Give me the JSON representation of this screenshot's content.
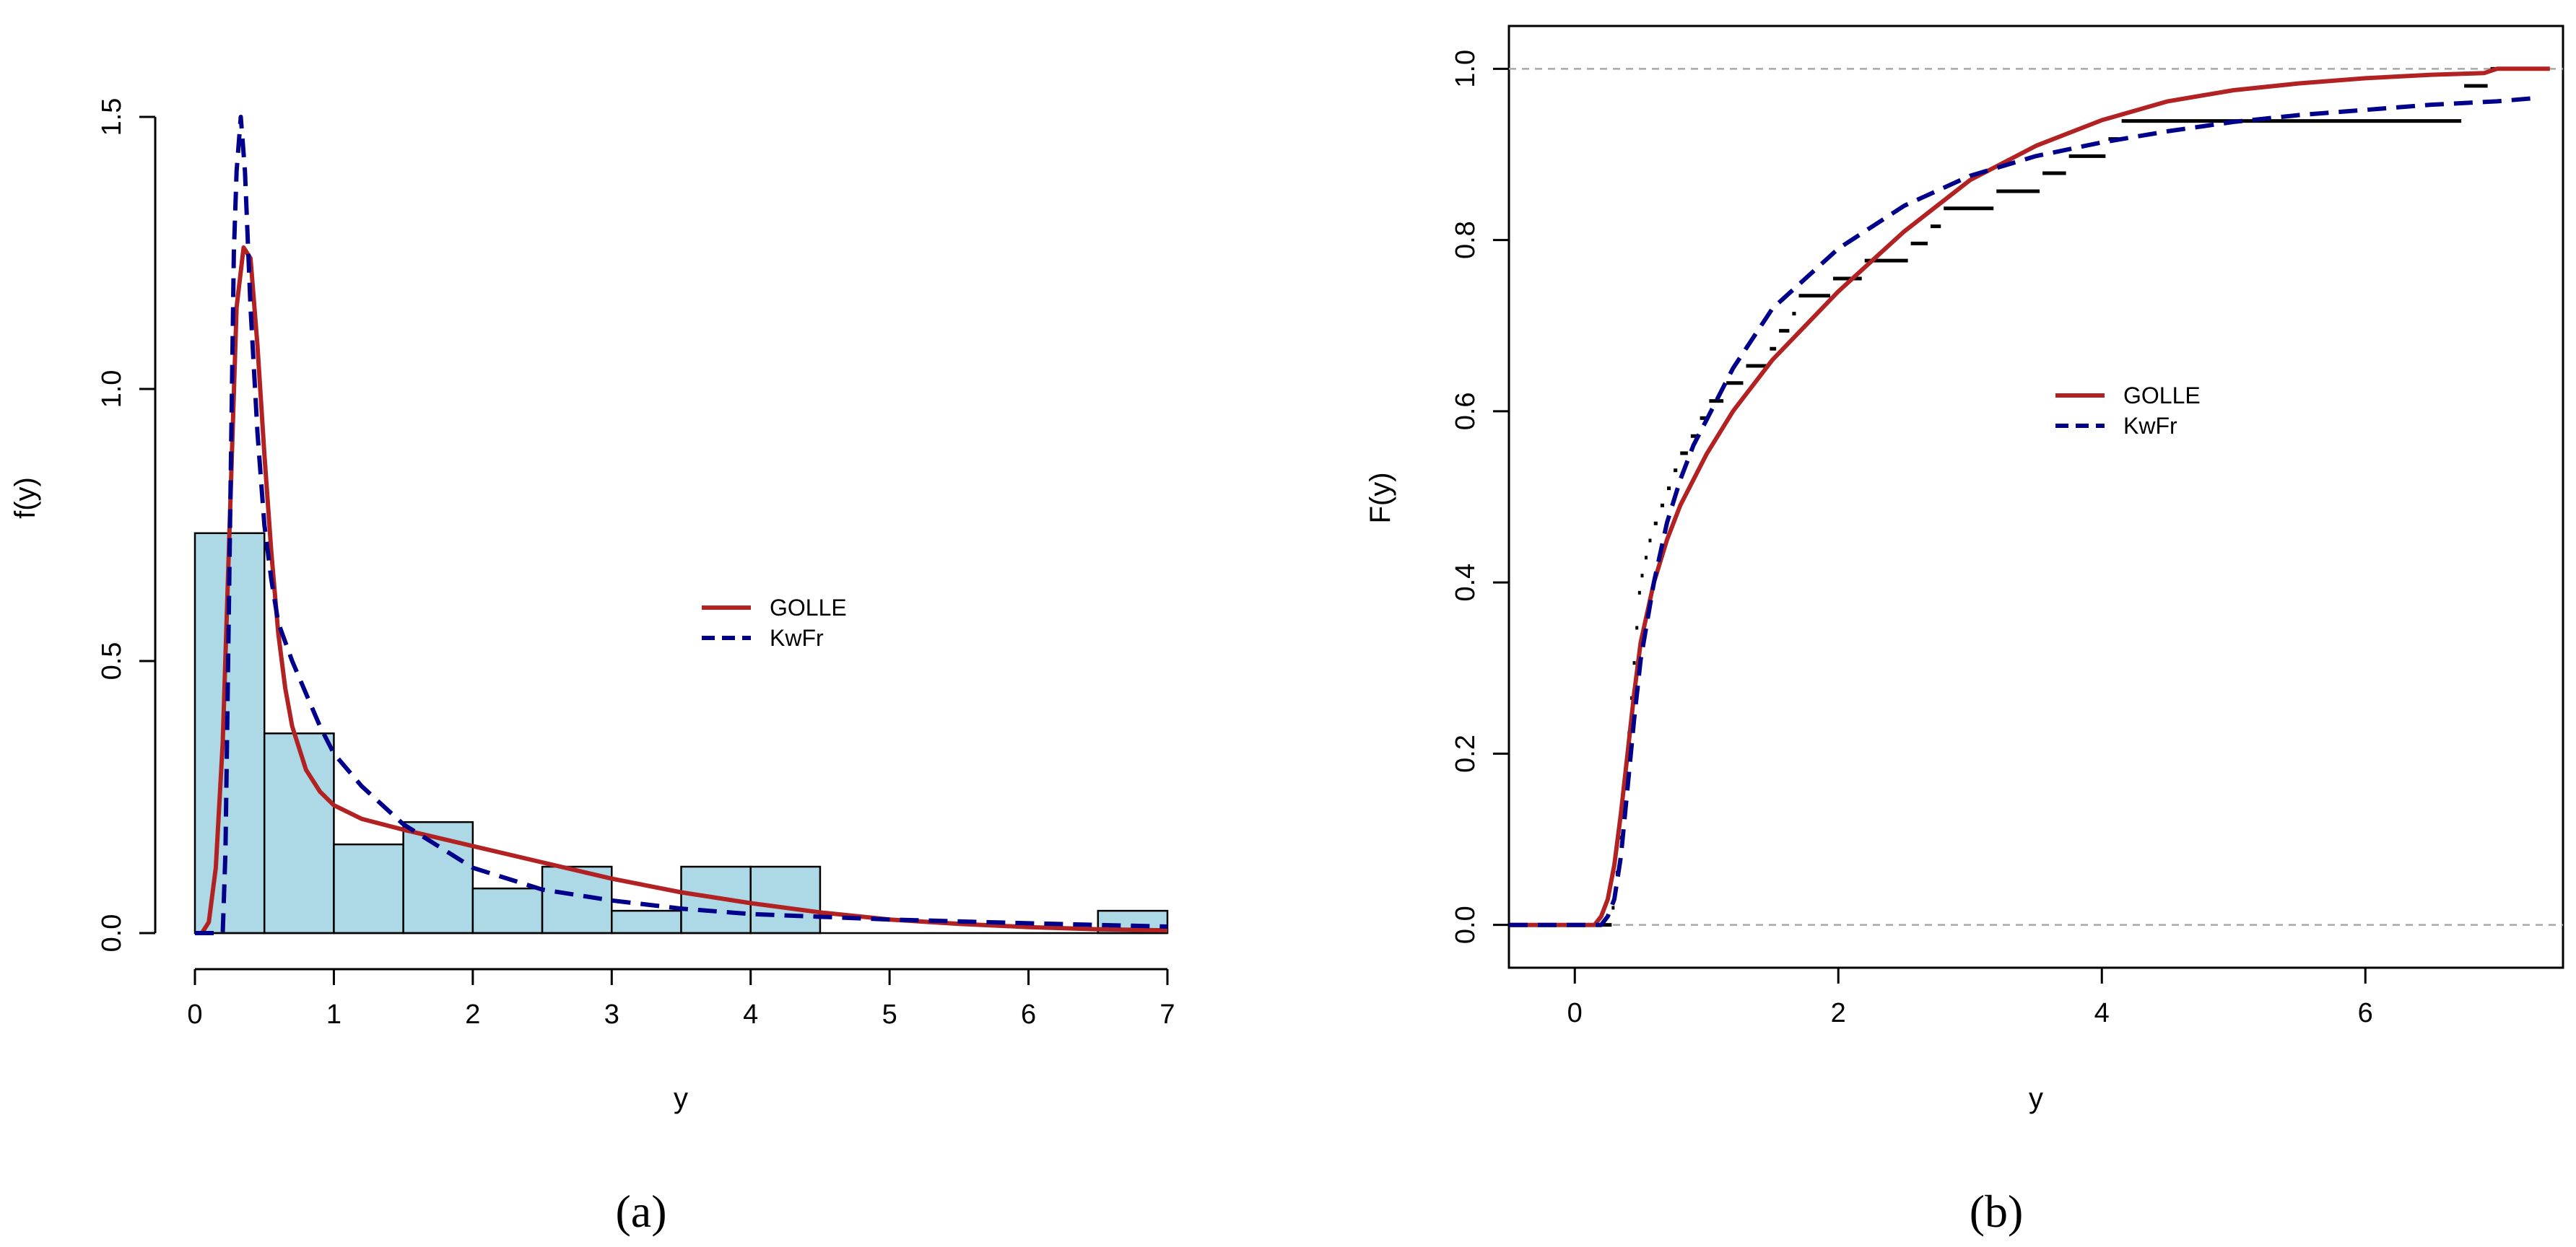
{
  "chart_data": [
    {
      "type": "bar",
      "panel_label": "(a)",
      "xlabel": "y",
      "ylabel": "f(y)",
      "xlim": [
        0,
        7
      ],
      "ylim": [
        0,
        1.5
      ],
      "x_ticks": [
        "0",
        "1",
        "2",
        "3",
        "4",
        "5",
        "6",
        "7"
      ],
      "y_ticks": [
        "0.0",
        "0.5",
        "1.0",
        "1.5"
      ],
      "grid": false,
      "legend_position": "center-right",
      "histogram": {
        "bin_edges": [
          0,
          0.5,
          1,
          1.5,
          2,
          2.5,
          3,
          3.5,
          4,
          4.5,
          5,
          5.5,
          6,
          6.5,
          7
        ],
        "density": [
          0.735,
          0.367,
          0.163,
          0.204,
          0.082,
          0.122,
          0.041,
          0.122,
          0.122,
          0,
          0,
          0,
          0,
          0.041
        ],
        "fill_color": "#ADD8E6",
        "edge_color": "#000000"
      },
      "series": [
        {
          "name": "GOLLE",
          "color": "#B22222",
          "line_style": "solid",
          "x": [
            0,
            0.05,
            0.1,
            0.15,
            0.2,
            0.25,
            0.3,
            0.35,
            0.4,
            0.45,
            0.5,
            0.55,
            0.6,
            0.65,
            0.7,
            0.8,
            0.9,
            1.0,
            1.2,
            1.5,
            2.0,
            2.5,
            3.0,
            3.5,
            4.0,
            4.5,
            5.0,
            5.5,
            6.0,
            6.5,
            7.0
          ],
          "y": [
            0,
            0,
            0.02,
            0.12,
            0.35,
            0.75,
            1.15,
            1.26,
            1.24,
            1.08,
            0.88,
            0.7,
            0.55,
            0.45,
            0.38,
            0.3,
            0.26,
            0.235,
            0.21,
            0.19,
            0.16,
            0.13,
            0.1,
            0.075,
            0.055,
            0.038,
            0.025,
            0.017,
            0.011,
            0.007,
            0.005
          ]
        },
        {
          "name": "KwFr",
          "color": "#00008B",
          "line_style": "dashed",
          "x": [
            0,
            0.15,
            0.2,
            0.22,
            0.25,
            0.28,
            0.3,
            0.33,
            0.36,
            0.4,
            0.45,
            0.5,
            0.55,
            0.6,
            0.7,
            0.8,
            0.9,
            1.0,
            1.2,
            1.5,
            2.0,
            2.5,
            3.0,
            3.5,
            4.0,
            5.0,
            6.0,
            7.0
          ],
          "y": [
            0,
            0,
            0,
            0.15,
            0.7,
            1.25,
            1.4,
            1.5,
            1.4,
            1.15,
            0.92,
            0.75,
            0.65,
            0.57,
            0.5,
            0.44,
            0.38,
            0.33,
            0.27,
            0.2,
            0.12,
            0.08,
            0.06,
            0.045,
            0.035,
            0.025,
            0.018,
            0.012
          ]
        }
      ]
    },
    {
      "type": "line",
      "panel_label": "(b)",
      "xlabel": "y",
      "ylabel": "F(y)",
      "xlim": [
        -0.5,
        7.5
      ],
      "ylim": [
        0,
        1
      ],
      "x_ticks": [
        "0",
        "2",
        "4",
        "6"
      ],
      "y_ticks": [
        "0.0",
        "0.2",
        "0.4",
        "0.6",
        "0.8",
        "1.0"
      ],
      "reference_lines": [
        0,
        1
      ],
      "grid": false,
      "legend_position": "center",
      "ecdf": {
        "color": "#000000",
        "jumps": [
          0.28,
          0.31,
          0.33,
          0.36,
          0.38,
          0.4,
          0.42,
          0.44,
          0.46,
          0.48,
          0.5,
          0.53,
          0.56,
          0.6,
          0.65,
          0.7,
          0.75,
          0.8,
          0.88,
          0.95,
          1.02,
          1.15,
          1.3,
          1.48,
          1.55,
          1.65,
          1.7,
          1.96,
          2.2,
          2.55,
          2.7,
          2.8,
          3.2,
          3.55,
          3.75,
          4.05,
          4.15,
          6.75,
          6.95
        ],
        "levels": [
          0.02,
          0.061,
          0.102,
          0.143,
          0.184,
          0.224,
          0.265,
          0.306,
          0.347,
          0.388,
          0.408,
          0.429,
          0.449,
          0.469,
          0.49,
          0.51,
          0.531,
          0.551,
          0.571,
          0.592,
          0.612,
          0.633,
          0.653,
          0.673,
          0.694,
          0.714,
          0.735,
          0.755,
          0.776,
          0.796,
          0.816,
          0.837,
          0.857,
          0.878,
          0.898,
          0.918,
          0.939,
          0.98,
          1.0
        ],
        "max_x": 7.4
      },
      "series": [
        {
          "name": "GOLLE",
          "color": "#B22222",
          "line_style": "solid",
          "x": [
            -0.5,
            0.15,
            0.2,
            0.25,
            0.3,
            0.35,
            0.4,
            0.45,
            0.5,
            0.6,
            0.7,
            0.8,
            1.0,
            1.2,
            1.5,
            2.0,
            2.5,
            3.0,
            3.5,
            4.0,
            4.5,
            5.0,
            5.5,
            6.0,
            6.5,
            6.9,
            7.0,
            7.4
          ],
          "y": [
            0,
            0,
            0.01,
            0.03,
            0.07,
            0.13,
            0.2,
            0.27,
            0.33,
            0.4,
            0.45,
            0.49,
            0.55,
            0.6,
            0.66,
            0.74,
            0.81,
            0.87,
            0.91,
            0.94,
            0.962,
            0.975,
            0.983,
            0.989,
            0.993,
            0.995,
            1.0,
            1.0
          ]
        },
        {
          "name": "KwFr",
          "color": "#00008B",
          "line_style": "dashed",
          "x": [
            -0.5,
            0.2,
            0.25,
            0.3,
            0.35,
            0.4,
            0.45,
            0.5,
            0.6,
            0.7,
            0.8,
            0.9,
            1.0,
            1.2,
            1.5,
            2.0,
            2.5,
            3.0,
            3.5,
            4.0,
            4.5,
            5.0,
            5.5,
            6.0,
            6.5,
            7.0,
            7.3
          ],
          "y": [
            0,
            0,
            0.01,
            0.03,
            0.08,
            0.16,
            0.24,
            0.31,
            0.4,
            0.47,
            0.52,
            0.56,
            0.59,
            0.65,
            0.72,
            0.79,
            0.84,
            0.875,
            0.898,
            0.914,
            0.927,
            0.938,
            0.946,
            0.952,
            0.958,
            0.962,
            0.966
          ]
        }
      ]
    }
  ]
}
